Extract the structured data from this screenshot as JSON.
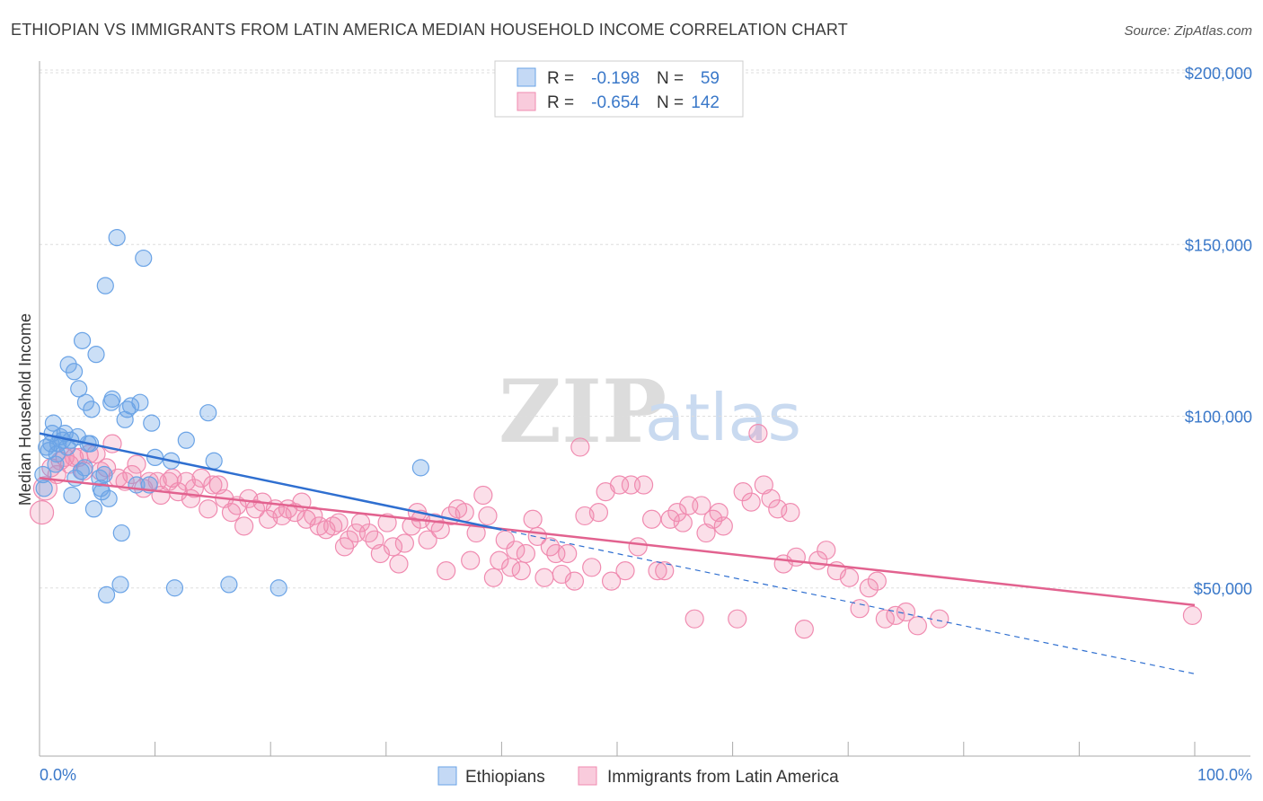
{
  "title": "ETHIOPIAN VS IMMIGRANTS FROM LATIN AMERICA MEDIAN HOUSEHOLD INCOME CORRELATION CHART",
  "source": "Source: ZipAtlas.com",
  "watermark": {
    "zip": "ZIP",
    "atlas": "atlas"
  },
  "legend": {
    "r_label": "R =",
    "n_label": "N =",
    "rows": [
      {
        "r": "-0.198",
        "n": "59"
      },
      {
        "r": "-0.654",
        "n": "142"
      }
    ]
  },
  "colors": {
    "ethiopians": "#6aa3e6",
    "ethiopians_line": "#2f6fd0",
    "latin": "#f08bb0",
    "latin_line": "#e2628f",
    "axis_text": "#3a78c9",
    "grid": "#dddddd"
  },
  "chart_data": {
    "type": "scatter",
    "xlabel": "",
    "ylabel": "Median Household Income",
    "xlim": [
      0,
      100
    ],
    "ylim": [
      0,
      215000
    ],
    "y_ticks": [
      {
        "value": 50000,
        "label": "$50,000"
      },
      {
        "value": 100000,
        "label": "$100,000"
      },
      {
        "value": 150000,
        "label": "$150,000"
      },
      {
        "value": 200000,
        "label": "$200,000"
      }
    ],
    "x_ticks": [
      {
        "value": 0,
        "label": "0.0%"
      },
      {
        "value": 100,
        "label": "100.0%"
      }
    ],
    "grid": true,
    "legend_position": "top-center",
    "series": [
      {
        "name": "Ethiopians",
        "r": -0.198,
        "n": 59,
        "trend": {
          "x0": 0,
          "y0": 95000,
          "x1": 40,
          "y1": 67000,
          "dash_to_x": 100,
          "dash_to_y": 25000
        },
        "points": [
          [
            0.3,
            83000
          ],
          [
            0.4,
            79000
          ],
          [
            0.6,
            91000
          ],
          [
            0.8,
            90000
          ],
          [
            1.0,
            92000
          ],
          [
            1.1,
            95000
          ],
          [
            1.2,
            98000
          ],
          [
            1.4,
            86000
          ],
          [
            1.5,
            89000
          ],
          [
            1.6,
            92000
          ],
          [
            1.8,
            94000
          ],
          [
            2.0,
            93000
          ],
          [
            2.2,
            95000
          ],
          [
            2.4,
            91000
          ],
          [
            2.5,
            115000
          ],
          [
            2.7,
            93000
          ],
          [
            2.8,
            77000
          ],
          [
            3.0,
            113000
          ],
          [
            3.1,
            82000
          ],
          [
            3.3,
            94000
          ],
          [
            3.4,
            108000
          ],
          [
            3.6,
            84000
          ],
          [
            3.7,
            122000
          ],
          [
            3.9,
            85000
          ],
          [
            4.0,
            104000
          ],
          [
            4.2,
            92000
          ],
          [
            4.4,
            92000
          ],
          [
            4.5,
            102000
          ],
          [
            4.7,
            73000
          ],
          [
            4.9,
            118000
          ],
          [
            5.2,
            82000
          ],
          [
            5.3,
            79000
          ],
          [
            5.4,
            78000
          ],
          [
            5.6,
            83000
          ],
          [
            5.7,
            138000
          ],
          [
            5.8,
            48000
          ],
          [
            6.0,
            76000
          ],
          [
            6.2,
            104000
          ],
          [
            6.3,
            105000
          ],
          [
            6.7,
            152000
          ],
          [
            7.0,
            51000
          ],
          [
            7.1,
            66000
          ],
          [
            7.4,
            99000
          ],
          [
            7.6,
            102000
          ],
          [
            7.9,
            103000
          ],
          [
            8.4,
            80000
          ],
          [
            8.7,
            104000
          ],
          [
            9.0,
            146000
          ],
          [
            9.5,
            80000
          ],
          [
            9.7,
            98000
          ],
          [
            10.0,
            88000
          ],
          [
            11.4,
            87000
          ],
          [
            11.7,
            50000
          ],
          [
            12.7,
            93000
          ],
          [
            14.6,
            101000
          ],
          [
            15.1,
            87000
          ],
          [
            16.4,
            51000
          ],
          [
            20.7,
            50000
          ],
          [
            33.0,
            85000
          ]
        ]
      },
      {
        "name": "Immigrants from Latin America",
        "r": -0.654,
        "n": 142,
        "trend": {
          "x0": 0,
          "y0": 82000,
          "x1": 100,
          "y1": 45000
        },
        "points": [
          [
            0.2,
            72000
          ],
          [
            0.5,
            79000
          ],
          [
            1.0,
            85000
          ],
          [
            1.5,
            83000
          ],
          [
            1.8,
            87000
          ],
          [
            2.2,
            88000
          ],
          [
            2.6,
            86000
          ],
          [
            3.0,
            88000
          ],
          [
            3.4,
            88000
          ],
          [
            3.8,
            84000
          ],
          [
            4.3,
            89000
          ],
          [
            4.9,
            89000
          ],
          [
            5.3,
            84000
          ],
          [
            5.8,
            85000
          ],
          [
            6.3,
            92000
          ],
          [
            6.8,
            82000
          ],
          [
            7.4,
            81000
          ],
          [
            8.0,
            83000
          ],
          [
            8.4,
            86000
          ],
          [
            9.0,
            79000
          ],
          [
            9.5,
            81000
          ],
          [
            10.2,
            81000
          ],
          [
            10.5,
            77000
          ],
          [
            11.2,
            81000
          ],
          [
            11.5,
            82000
          ],
          [
            12.0,
            78000
          ],
          [
            12.7,
            81000
          ],
          [
            13.1,
            76000
          ],
          [
            13.4,
            79000
          ],
          [
            14.0,
            82000
          ],
          [
            14.6,
            73000
          ],
          [
            15.0,
            80000
          ],
          [
            15.5,
            80000
          ],
          [
            16.0,
            76000
          ],
          [
            16.6,
            72000
          ],
          [
            17.1,
            74000
          ],
          [
            17.7,
            68000
          ],
          [
            18.1,
            76000
          ],
          [
            18.7,
            73000
          ],
          [
            19.3,
            75000
          ],
          [
            19.8,
            70000
          ],
          [
            20.4,
            73000
          ],
          [
            21.0,
            71000
          ],
          [
            21.5,
            73000
          ],
          [
            22.1,
            72000
          ],
          [
            22.7,
            75000
          ],
          [
            23.1,
            70000
          ],
          [
            23.7,
            71000
          ],
          [
            24.2,
            68000
          ],
          [
            24.8,
            67000
          ],
          [
            25.4,
            68000
          ],
          [
            25.9,
            69000
          ],
          [
            26.4,
            62000
          ],
          [
            26.8,
            64000
          ],
          [
            27.4,
            66000
          ],
          [
            27.8,
            69000
          ],
          [
            28.5,
            66000
          ],
          [
            29.0,
            64000
          ],
          [
            29.5,
            60000
          ],
          [
            30.1,
            69000
          ],
          [
            30.6,
            62000
          ],
          [
            31.1,
            57000
          ],
          [
            31.6,
            63000
          ],
          [
            32.2,
            68000
          ],
          [
            32.7,
            72000
          ],
          [
            33.0,
            70000
          ],
          [
            33.6,
            64000
          ],
          [
            34.2,
            69000
          ],
          [
            34.7,
            67000
          ],
          [
            35.2,
            55000
          ],
          [
            35.6,
            71000
          ],
          [
            36.2,
            73000
          ],
          [
            36.8,
            72000
          ],
          [
            37.3,
            58000
          ],
          [
            37.8,
            66000
          ],
          [
            38.4,
            77000
          ],
          [
            38.8,
            71000
          ],
          [
            39.3,
            53000
          ],
          [
            39.8,
            58000
          ],
          [
            40.3,
            64000
          ],
          [
            40.8,
            56000
          ],
          [
            41.2,
            61000
          ],
          [
            41.7,
            55000
          ],
          [
            42.1,
            60000
          ],
          [
            42.7,
            70000
          ],
          [
            43.1,
            65000
          ],
          [
            43.7,
            53000
          ],
          [
            44.2,
            62000
          ],
          [
            44.7,
            60000
          ],
          [
            45.2,
            54000
          ],
          [
            45.7,
            60000
          ],
          [
            46.3,
            52000
          ],
          [
            46.8,
            91000
          ],
          [
            47.2,
            71000
          ],
          [
            47.8,
            56000
          ],
          [
            48.4,
            72000
          ],
          [
            49.0,
            78000
          ],
          [
            49.5,
            52000
          ],
          [
            50.2,
            80000
          ],
          [
            50.7,
            55000
          ],
          [
            51.2,
            80000
          ],
          [
            51.8,
            62000
          ],
          [
            52.3,
            80000
          ],
          [
            53.0,
            70000
          ],
          [
            53.5,
            55000
          ],
          [
            54.1,
            55000
          ],
          [
            54.6,
            70000
          ],
          [
            55.2,
            72000
          ],
          [
            55.7,
            69000
          ],
          [
            56.2,
            74000
          ],
          [
            56.7,
            41000
          ],
          [
            57.3,
            74000
          ],
          [
            57.7,
            66000
          ],
          [
            58.3,
            70000
          ],
          [
            58.8,
            72000
          ],
          [
            59.2,
            68000
          ],
          [
            60.4,
            41000
          ],
          [
            60.9,
            78000
          ],
          [
            61.6,
            75000
          ],
          [
            62.2,
            95000
          ],
          [
            62.7,
            80000
          ],
          [
            63.3,
            76000
          ],
          [
            63.9,
            73000
          ],
          [
            64.4,
            57000
          ],
          [
            65.0,
            72000
          ],
          [
            65.5,
            59000
          ],
          [
            66.2,
            38000
          ],
          [
            67.4,
            58000
          ],
          [
            68.1,
            61000
          ],
          [
            69.0,
            55000
          ],
          [
            70.1,
            53000
          ],
          [
            71.0,
            44000
          ],
          [
            71.8,
            50000
          ],
          [
            72.5,
            52000
          ],
          [
            73.2,
            41000
          ],
          [
            74.1,
            42000
          ],
          [
            75.0,
            43000
          ],
          [
            76.0,
            39000
          ],
          [
            77.9,
            41000
          ],
          [
            99.8,
            42000
          ]
        ]
      }
    ]
  },
  "bottom_legend": [
    "Ethiopians",
    "Immigrants from Latin America"
  ]
}
